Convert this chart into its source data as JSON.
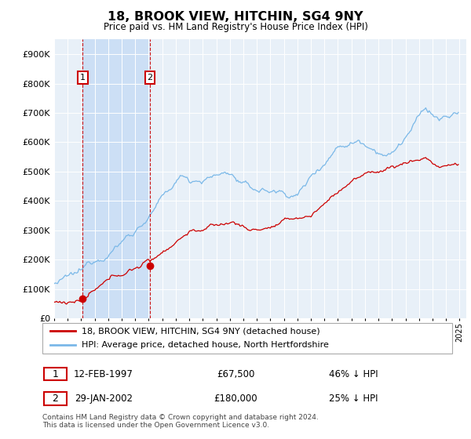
{
  "title": "18, BROOK VIEW, HITCHIN, SG4 9NY",
  "subtitle": "Price paid vs. HM Land Registry's House Price Index (HPI)",
  "legend_line1": "18, BROOK VIEW, HITCHIN, SG4 9NY (detached house)",
  "legend_line2": "HPI: Average price, detached house, North Hertfordshire",
  "footnote": "Contains HM Land Registry data © Crown copyright and database right 2024.\nThis data is licensed under the Open Government Licence v3.0.",
  "sale1_date": "12-FEB-1997",
  "sale1_price": 67500,
  "sale1_pct": "46% ↓ HPI",
  "sale1_year": 1997.12,
  "sale2_date": "29-JAN-2002",
  "sale2_price": 180000,
  "sale2_pct": "25% ↓ HPI",
  "sale2_year": 2002.08,
  "hpi_color": "#7ab8e8",
  "price_color": "#cc0000",
  "dashed_color": "#cc0000",
  "shade_color": "#ccdff5",
  "plot_bg": "#e8f0f8",
  "grid_color": "#ffffff",
  "ylim": [
    0,
    950000
  ],
  "yticks": [
    0,
    100000,
    200000,
    300000,
    400000,
    500000,
    600000,
    700000,
    800000,
    900000
  ],
  "xlim_start": 1995.0,
  "xlim_end": 2025.5
}
